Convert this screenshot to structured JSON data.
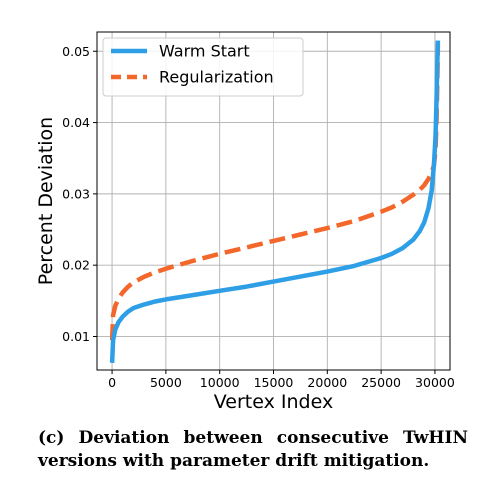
{
  "chart_data": {
    "type": "line",
    "xlabel": "Vertex Index",
    "ylabel": "Percent Deviation",
    "xlim": [
      -1400,
      31400
    ],
    "ylim": [
      0.0053,
      0.0527
    ],
    "xticks": [
      0,
      5000,
      10000,
      15000,
      20000,
      25000,
      30000
    ],
    "xtick_labels": [
      "0",
      "5000",
      "10000",
      "15000",
      "20000",
      "25000",
      "30000"
    ],
    "yticks": [
      0.01,
      0.02,
      0.03,
      0.04,
      0.05
    ],
    "ytick_labels": [
      "0.01",
      "0.02",
      "0.03",
      "0.04",
      "0.05"
    ],
    "grid": true,
    "legend_position": "top-left",
    "series": [
      {
        "name": "Warm Start",
        "color": "#2e9fe6",
        "style": "solid",
        "x": [
          0,
          100,
          300,
          600,
          1000,
          1500,
          2000,
          3000,
          4000,
          5000,
          7500,
          10000,
          12500,
          15000,
          17500,
          20000,
          22500,
          25000,
          26000,
          27000,
          28000,
          28600,
          29000,
          29400,
          29700,
          29900,
          30050,
          30150,
          30200,
          30250,
          30280
        ],
        "values": [
          0.0063,
          0.0095,
          0.011,
          0.012,
          0.0128,
          0.0135,
          0.014,
          0.0145,
          0.0149,
          0.0152,
          0.0158,
          0.0164,
          0.017,
          0.0177,
          0.0184,
          0.0191,
          0.0199,
          0.021,
          0.0216,
          0.0224,
          0.0236,
          0.0248,
          0.026,
          0.028,
          0.0305,
          0.034,
          0.038,
          0.043,
          0.047,
          0.05,
          0.0515
        ]
      },
      {
        "name": "Regularization",
        "color": "#f4672b",
        "style": "dashed",
        "x": [
          0,
          100,
          300,
          600,
          1000,
          1500,
          2000,
          3000,
          4000,
          5000,
          7500,
          10000,
          12500,
          15000,
          17500,
          20000,
          22500,
          25000,
          26000,
          27000,
          28000,
          28600,
          29000,
          29400,
          29700,
          29900,
          30050,
          30150,
          30200,
          30250,
          30280
        ],
        "values": [
          0.0095,
          0.013,
          0.0143,
          0.0153,
          0.0162,
          0.017,
          0.0176,
          0.0184,
          0.019,
          0.0195,
          0.0206,
          0.0216,
          0.0225,
          0.0234,
          0.0243,
          0.0252,
          0.0262,
          0.0275,
          0.0281,
          0.0289,
          0.0299,
          0.0306,
          0.0312,
          0.0321,
          0.033,
          0.034,
          0.036,
          0.04,
          0.044,
          0.048,
          0.051
        ]
      }
    ]
  },
  "caption": "(c) Deviation between consecutive TwHIN versions with parameter drift mitigation."
}
